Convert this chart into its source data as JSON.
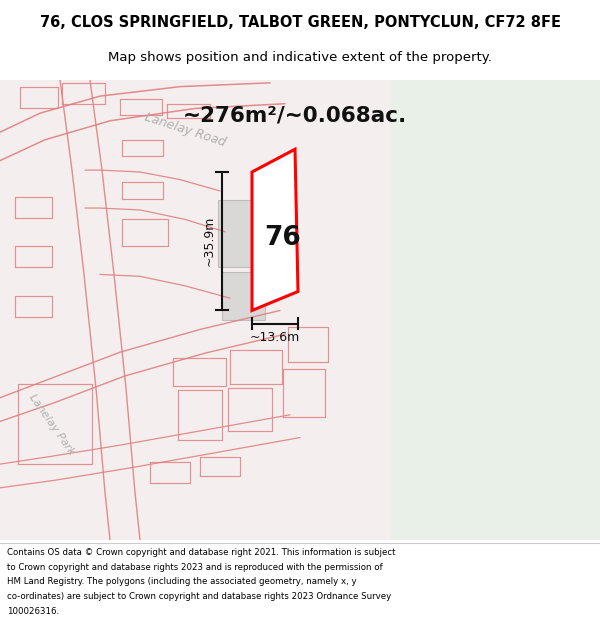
{
  "title_line1": "76, CLOS SPRINGFIELD, TALBOT GREEN, PONTYCLUN, CF72 8FE",
  "title_line2": "Map shows position and indicative extent of the property.",
  "area_text": "~276m²/~0.068ac.",
  "number_label": "76",
  "dim_height": "~35.9m",
  "dim_width": "~13.6m",
  "road_label1": "Lanelay Road",
  "road_label2": "Lanelay Park",
  "footer_lines": [
    "Contains OS data © Crown copyright and database right 2021. This information is subject",
    "to Crown copyright and database rights 2023 and is reproduced with the permission of",
    "HM Land Registry. The polygons (including the associated geometry, namely x, y",
    "co-ordinates) are subject to Crown copyright and database rights 2023 Ordnance Survey",
    "100026316."
  ],
  "map_bg_left": "#f5eeee",
  "map_bg_right": "#e8f0e8",
  "road_color": "#e08080",
  "property_edge": "#ff0000",
  "property_fill": "#ffffff",
  "dim_color": "#111111",
  "footer_bg": "#ffffff",
  "title_bg": "#ffffff",
  "road_label_color": "#b0b0b0",
  "gray_block_fill": "#cccccc",
  "gray_block_edge": "#aaaaaa"
}
